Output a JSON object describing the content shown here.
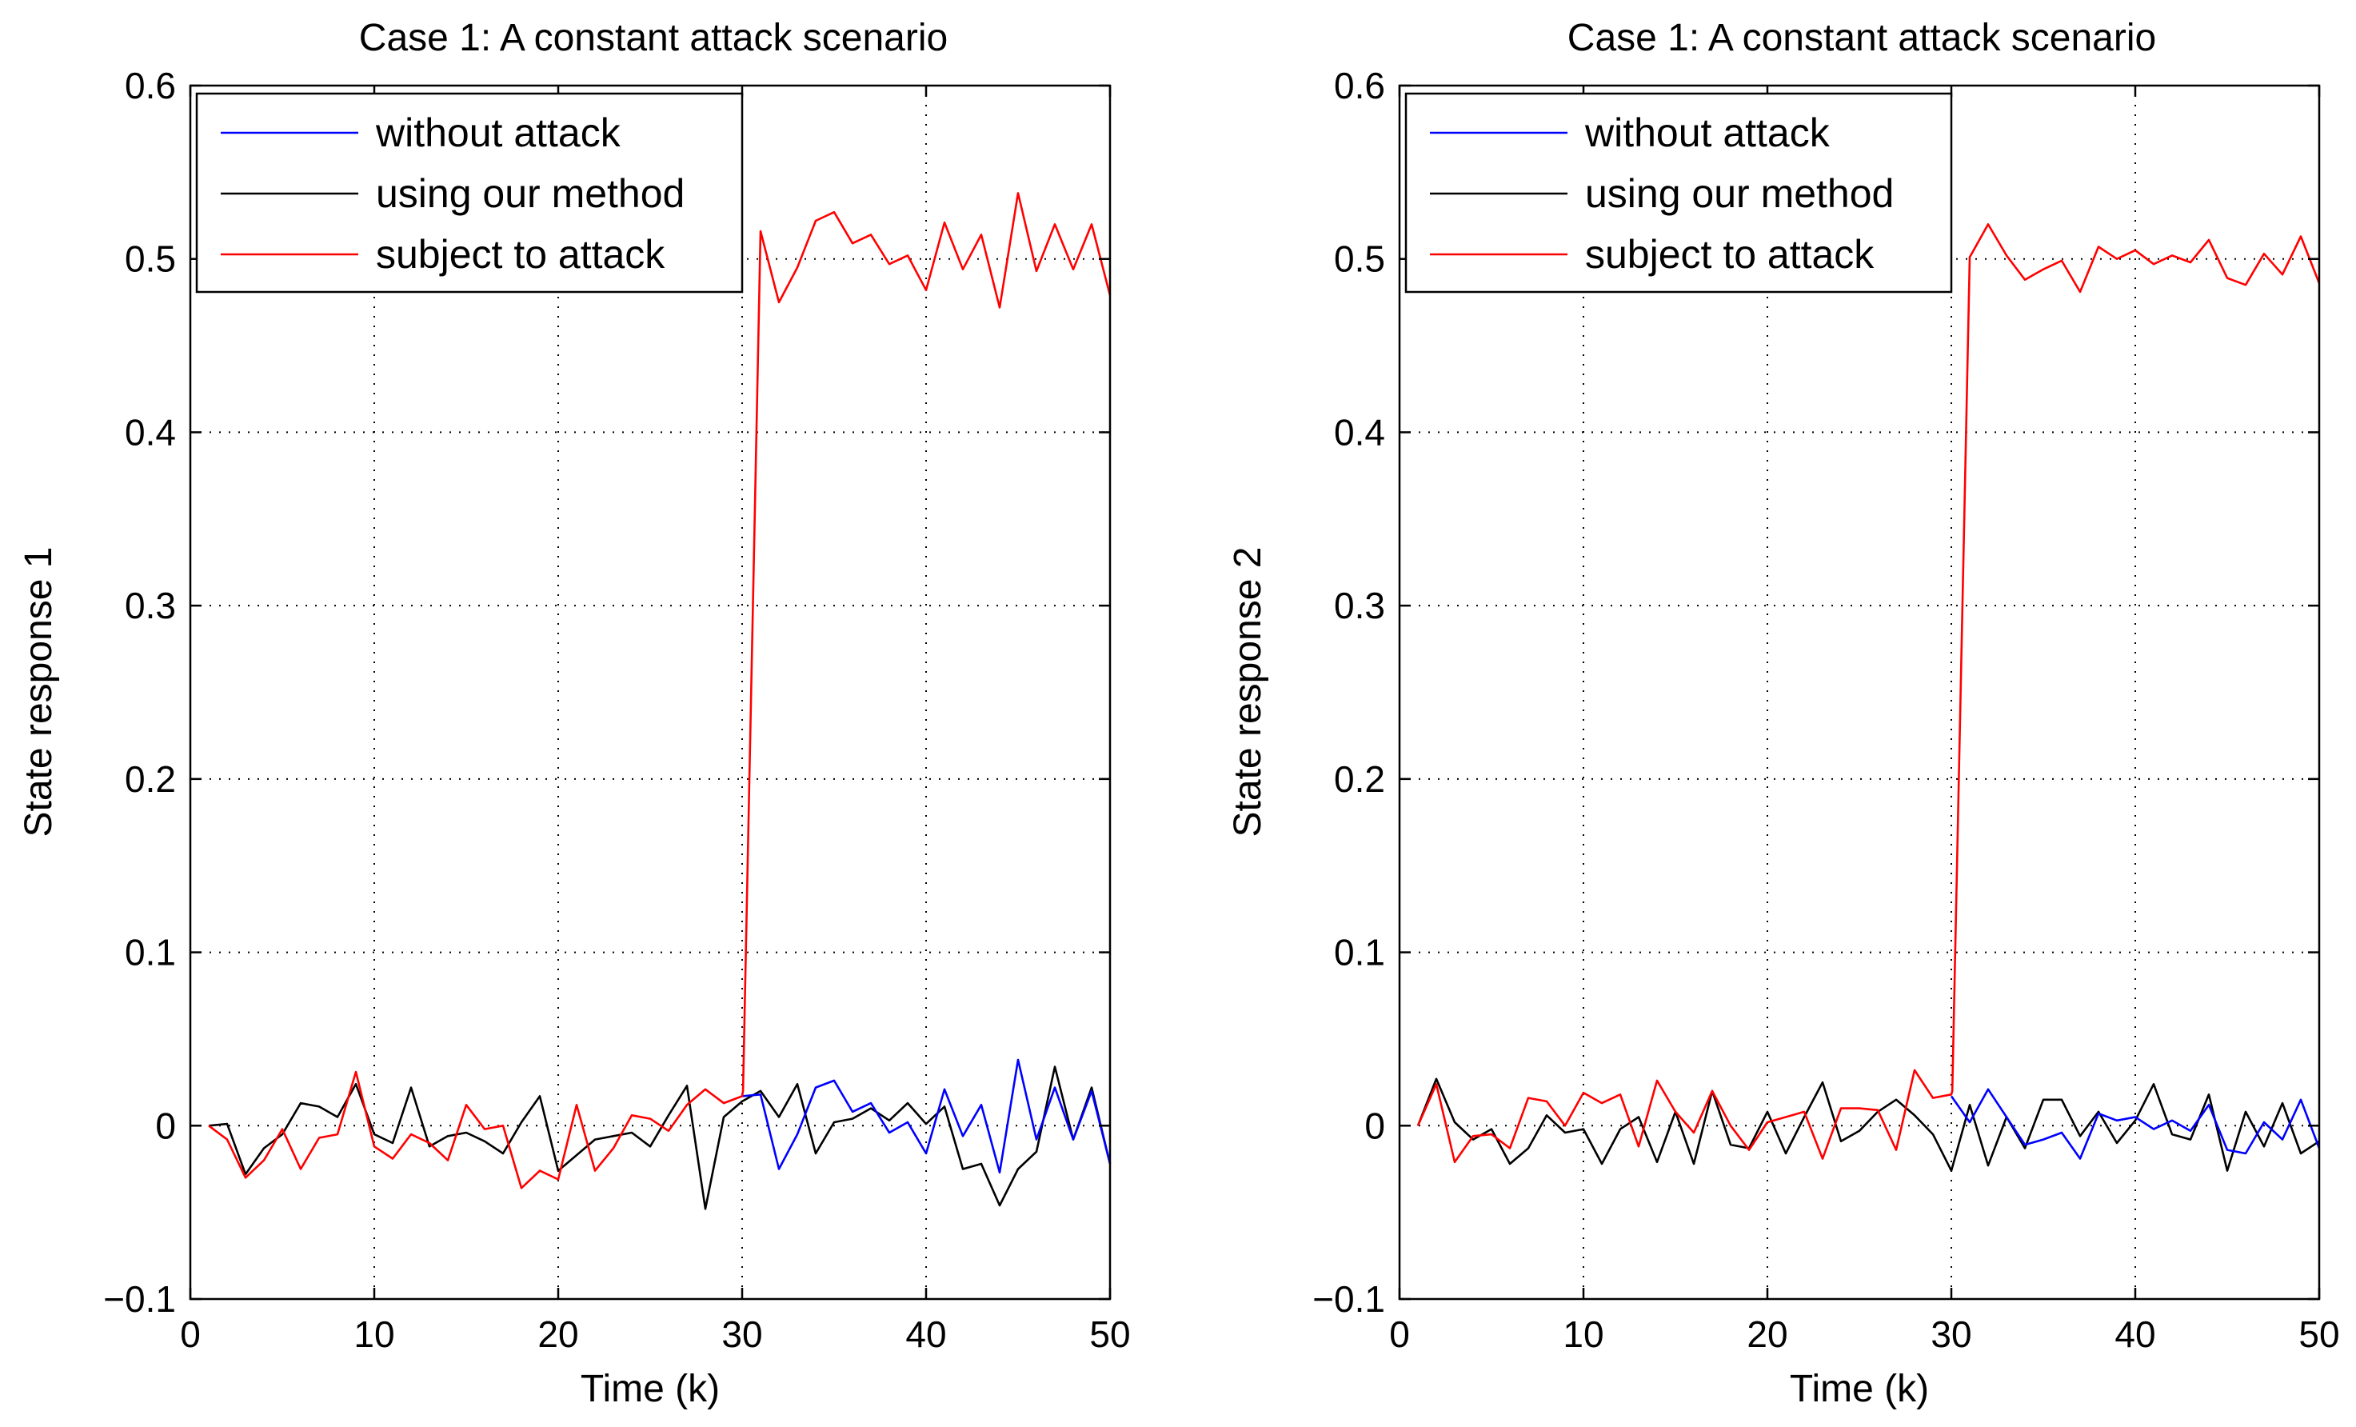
{
  "chart_data": [
    {
      "type": "line",
      "title": "Case 1: A constant attack scenario",
      "xlabel": "Time (k)",
      "ylabel": "State response 1",
      "xlim": [
        0,
        50
      ],
      "ylim": [
        -0.1,
        0.6
      ],
      "xticks": [
        0,
        10,
        20,
        30,
        40,
        50
      ],
      "xtick_labels": [
        "0",
        "10",
        "20",
        "30",
        "40",
        "50"
      ],
      "yticks": [
        -0.1,
        0,
        0.1,
        0.2,
        0.3,
        0.4,
        0.5,
        0.6
      ],
      "ytick_labels": [
        "−0.1",
        "0",
        "0.1",
        "0.2",
        "0.3",
        "0.4",
        "0.5",
        "0.6"
      ],
      "grid": true,
      "legend_position": "top-left",
      "series": [
        {
          "name": "without attack",
          "color": "#0000ff",
          "x": [
            30,
            31,
            32,
            33,
            34,
            35,
            36,
            37,
            38,
            39,
            40,
            41,
            42,
            43,
            44,
            45,
            46,
            47,
            48,
            49,
            50
          ],
          "y": [
            0.017,
            0.018,
            -0.025,
            -0.005,
            0.022,
            0.026,
            0.008,
            0.013,
            -0.004,
            0.002,
            -0.016,
            0.021,
            -0.006,
            0.012,
            -0.027,
            0.038,
            -0.008,
            0.022,
            -0.008,
            0.02,
            -0.022
          ]
        },
        {
          "name": "using our method",
          "color": "#000000",
          "x": [
            1,
            2,
            3,
            4,
            5,
            6,
            7,
            8,
            9,
            10,
            11,
            12,
            13,
            14,
            15,
            16,
            17,
            18,
            19,
            20,
            21,
            22,
            23,
            24,
            25,
            26,
            27,
            28,
            29,
            30,
            31,
            32,
            33,
            34,
            35,
            36,
            37,
            38,
            39,
            40,
            41,
            42,
            43,
            44,
            45,
            46,
            47,
            48,
            49,
            50
          ],
          "y": [
            0.0,
            0.001,
            -0.028,
            -0.013,
            -0.005,
            0.013,
            0.011,
            0.005,
            0.024,
            -0.005,
            -0.01,
            0.022,
            -0.012,
            -0.006,
            -0.004,
            -0.009,
            -0.016,
            0.002,
            0.017,
            -0.026,
            -0.017,
            -0.008,
            -0.006,
            -0.004,
            -0.012,
            0.006,
            0.023,
            -0.048,
            0.005,
            0.014,
            0.02,
            0.005,
            0.024,
            -0.016,
            0.002,
            0.004,
            0.01,
            0.003,
            0.013,
            0.001,
            0.011,
            -0.025,
            -0.022,
            -0.046,
            -0.025,
            -0.015,
            0.034,
            -0.008,
            0.022,
            -0.022
          ]
        },
        {
          "name": "subject to attack",
          "color": "#ff0000",
          "x": [
            1,
            2,
            3,
            4,
            5,
            6,
            7,
            8,
            9,
            10,
            11,
            12,
            13,
            14,
            15,
            16,
            17,
            18,
            19,
            20,
            21,
            22,
            23,
            24,
            25,
            26,
            27,
            28,
            29,
            30,
            30.05,
            31,
            32,
            33,
            34,
            35,
            36,
            37,
            38,
            39,
            40,
            41,
            42,
            43,
            44,
            45,
            46,
            47,
            48,
            49,
            50
          ],
          "y": [
            0.0,
            -0.008,
            -0.03,
            -0.02,
            -0.002,
            -0.025,
            -0.007,
            -0.005,
            0.031,
            -0.012,
            -0.019,
            -0.005,
            -0.01,
            -0.02,
            0.012,
            -0.002,
            0.0,
            -0.036,
            -0.026,
            -0.031,
            0.012,
            -0.026,
            -0.013,
            0.006,
            0.004,
            -0.003,
            0.012,
            0.021,
            0.013,
            0.017,
            0.02,
            0.516,
            0.475,
            0.495,
            0.522,
            0.527,
            0.509,
            0.514,
            0.497,
            0.502,
            0.482,
            0.521,
            0.494,
            0.514,
            0.472,
            0.538,
            0.493,
            0.52,
            0.494,
            0.52,
            0.479
          ]
        }
      ]
    },
    {
      "type": "line",
      "title": "Case 1: A constant attack scenario",
      "xlabel": "Time (k)",
      "ylabel": "State response 2",
      "xlim": [
        0,
        50
      ],
      "ylim": [
        -0.1,
        0.6
      ],
      "xticks": [
        0,
        10,
        20,
        30,
        40,
        50
      ],
      "xtick_labels": [
        "0",
        "10",
        "20",
        "30",
        "40",
        "50"
      ],
      "yticks": [
        -0.1,
        0,
        0.1,
        0.2,
        0.3,
        0.4,
        0.5,
        0.6
      ],
      "ytick_labels": [
        "−0.1",
        "0",
        "0.1",
        "0.2",
        "0.3",
        "0.4",
        "0.5",
        "0.6"
      ],
      "grid": true,
      "legend_position": "top-left",
      "series": [
        {
          "name": "without attack",
          "color": "#0000ff",
          "x": [
            30,
            31,
            32,
            33,
            34,
            35,
            36,
            37,
            38,
            39,
            40,
            41,
            42,
            43,
            44,
            45,
            46,
            47,
            48,
            49,
            50
          ],
          "y": [
            0.017,
            0.002,
            0.021,
            0.005,
            -0.011,
            -0.008,
            -0.004,
            -0.019,
            0.007,
            0.003,
            0.005,
            -0.002,
            0.003,
            -0.003,
            0.012,
            -0.014,
            -0.016,
            0.002,
            -0.008,
            0.015,
            -0.013
          ]
        },
        {
          "name": "using our method",
          "color": "#000000",
          "x": [
            1,
            2,
            3,
            4,
            5,
            6,
            7,
            8,
            9,
            10,
            11,
            12,
            13,
            14,
            15,
            16,
            17,
            18,
            19,
            20,
            21,
            22,
            23,
            24,
            25,
            26,
            27,
            28,
            29,
            30,
            31,
            32,
            33,
            34,
            35,
            36,
            37,
            38,
            39,
            40,
            41,
            42,
            43,
            44,
            45,
            46,
            47,
            48,
            49,
            50
          ],
          "y": [
            0.0,
            0.027,
            0.002,
            -0.008,
            -0.002,
            -0.022,
            -0.013,
            0.006,
            -0.004,
            -0.002,
            -0.022,
            -0.002,
            0.005,
            -0.021,
            0.008,
            -0.022,
            0.02,
            -0.011,
            -0.013,
            0.008,
            -0.016,
            0.005,
            0.025,
            -0.009,
            -0.003,
            0.008,
            0.015,
            0.006,
            -0.005,
            -0.026,
            0.012,
            -0.023,
            0.005,
            -0.013,
            0.015,
            0.015,
            -0.006,
            0.008,
            -0.01,
            0.003,
            0.024,
            -0.005,
            -0.008,
            0.018,
            -0.026,
            0.008,
            -0.012,
            0.013,
            -0.016,
            -0.009
          ]
        },
        {
          "name": "subject to attack",
          "color": "#ff0000",
          "x": [
            1,
            2,
            3,
            4,
            5,
            6,
            7,
            8,
            9,
            10,
            11,
            12,
            13,
            14,
            15,
            16,
            17,
            18,
            19,
            20,
            21,
            22,
            23,
            24,
            25,
            26,
            27,
            28,
            29,
            30,
            30.05,
            31,
            32,
            33,
            34,
            35,
            36,
            37,
            38,
            39,
            40,
            41,
            42,
            43,
            44,
            45,
            46,
            47,
            48,
            49,
            50
          ],
          "y": [
            0.0,
            0.024,
            -0.021,
            -0.006,
            -0.005,
            -0.013,
            0.016,
            0.014,
            0.0,
            0.019,
            0.013,
            0.018,
            -0.012,
            0.026,
            0.008,
            -0.004,
            0.02,
            0.0,
            -0.014,
            0.002,
            0.005,
            0.008,
            -0.019,
            0.01,
            0.01,
            0.009,
            -0.014,
            0.032,
            0.016,
            0.018,
            0.02,
            0.501,
            0.52,
            0.502,
            0.488,
            0.494,
            0.499,
            0.481,
            0.507,
            0.5,
            0.505,
            0.497,
            0.502,
            0.498,
            0.511,
            0.489,
            0.485,
            0.503,
            0.491,
            0.513,
            0.486
          ]
        }
      ]
    }
  ]
}
